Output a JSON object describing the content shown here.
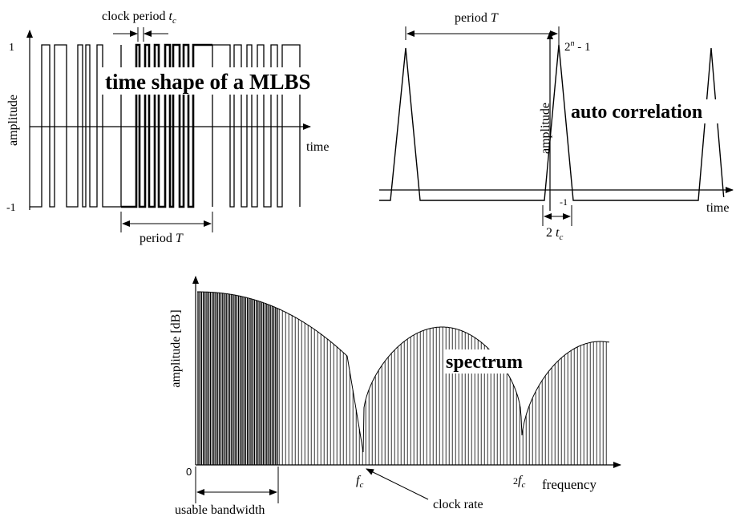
{
  "mlbs": {
    "title": "time shape of a MLBS",
    "y_label": "amplitude",
    "x_label": "time",
    "tick_high": "1",
    "tick_low": "-1",
    "clock_label": "clock period",
    "clock_symbol": "t",
    "clock_sub": "c",
    "period_label": "period",
    "period_symbol": "T"
  },
  "autocorr": {
    "title": "auto correlation",
    "y_label": "amplitude",
    "x_label": "time",
    "period_label": "period",
    "period_symbol": "T",
    "peak_base": "2",
    "peak_exp": "n",
    "peak_tail": " - 1",
    "floor_label": "-1",
    "width_prefix": "2",
    "width_symbol": "t",
    "width_sub": "c"
  },
  "spectrum": {
    "title": "spectrum",
    "y_label": "amplitude [dB]",
    "x_label": "frequency",
    "origin": "0",
    "fc_symbol": "f",
    "fc_sub": "c",
    "fc2_prefix": "2",
    "fc2_symbol": "f",
    "fc2_sub": "c",
    "clock_rate_label": "clock rate",
    "bandwidth_label": "usable bandwidth"
  }
}
